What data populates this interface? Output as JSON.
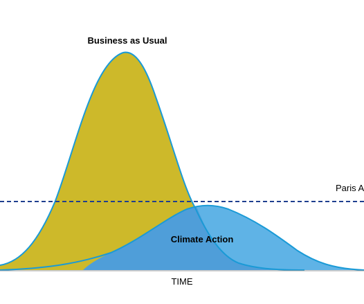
{
  "labels": {
    "business_as_usual": "Business as Usual",
    "climate_action": "Climate Action",
    "paris_line": "Paris A",
    "x_axis": "TIME"
  },
  "colors": {
    "business_fill": "#cdb92a",
    "business_stroke": "#1a9ad6",
    "climate_fill": "#5fb3e6",
    "overlap_fill": "#4f9ed9",
    "paris_line": "#1f3f8f",
    "axis": "#9a9a9a"
  }
}
